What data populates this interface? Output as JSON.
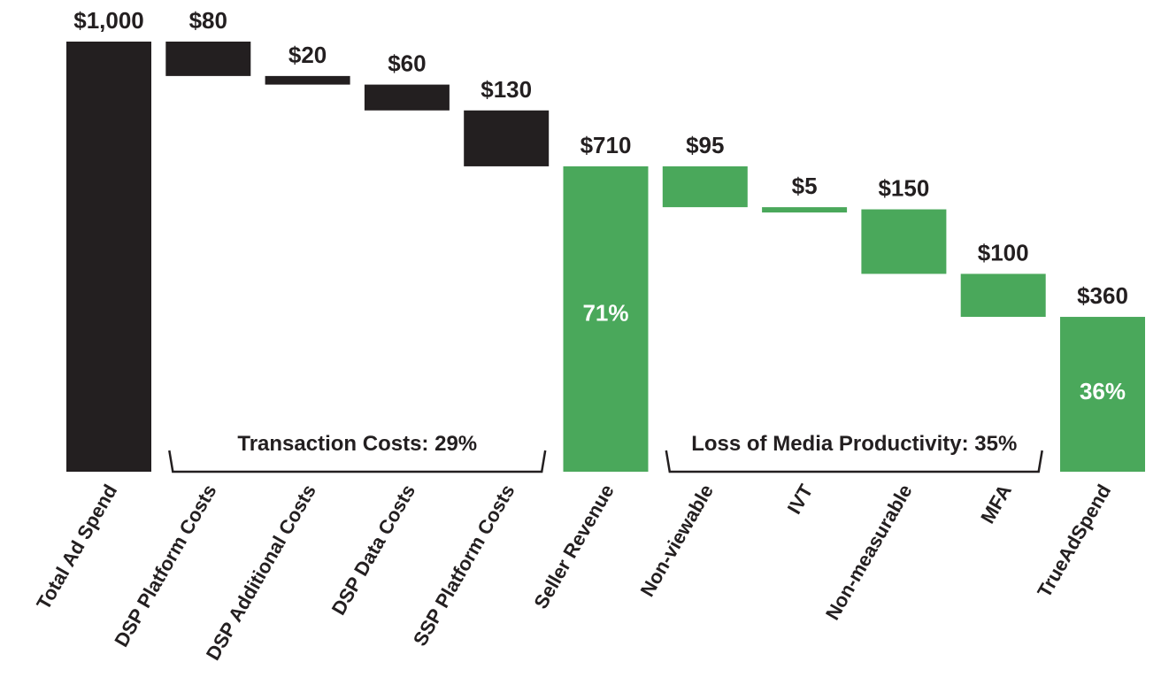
{
  "colors": {
    "dark": "#231f20",
    "green": "#4aa85b"
  },
  "chart_data": {
    "type": "waterfall",
    "title": "",
    "ylim": [
      0,
      1000
    ],
    "categories": [
      "Total Ad Spend",
      "DSP Platform Costs",
      "DSP Additional Costs",
      "DSP Data Costs",
      "SSP Platform Costs",
      "Seller Revenue",
      "Non-viewable",
      "IVT",
      "Non-measurable",
      "MFA",
      "TrueAdSpend"
    ],
    "bars": [
      {
        "category": "Total Ad Spend",
        "value": 1000,
        "label": "$1,000",
        "kind": "total",
        "color": "dark",
        "pct": ""
      },
      {
        "category": "DSP Platform Costs",
        "value": 80,
        "label": "$80",
        "kind": "decrease",
        "color": "dark",
        "pct": ""
      },
      {
        "category": "DSP Additional Costs",
        "value": 20,
        "label": "$20",
        "kind": "decrease",
        "color": "dark",
        "pct": ""
      },
      {
        "category": "DSP Data Costs",
        "value": 60,
        "label": "$60",
        "kind": "decrease",
        "color": "dark",
        "pct": ""
      },
      {
        "category": "SSP Platform Costs",
        "value": 130,
        "label": "$130",
        "kind": "decrease",
        "color": "dark",
        "pct": ""
      },
      {
        "category": "Seller Revenue",
        "value": 710,
        "label": "$710",
        "kind": "total",
        "color": "green",
        "pct": "71%"
      },
      {
        "category": "Non-viewable",
        "value": 95,
        "label": "$95",
        "kind": "decrease",
        "color": "green",
        "pct": ""
      },
      {
        "category": "IVT",
        "value": 5,
        "label": "$5",
        "kind": "decrease",
        "color": "green",
        "pct": ""
      },
      {
        "category": "Non-measurable",
        "value": 150,
        "label": "$150",
        "kind": "decrease",
        "color": "green",
        "pct": ""
      },
      {
        "category": "MFA",
        "value": 100,
        "label": "$100",
        "kind": "decrease",
        "color": "green",
        "pct": ""
      },
      {
        "category": "TrueAdSpend",
        "value": 360,
        "label": "$360",
        "kind": "total",
        "color": "green",
        "pct": "36%"
      }
    ],
    "braces": [
      {
        "label": "Transaction Costs: 29%",
        "from": 1,
        "to": 4
      },
      {
        "label": "Loss of Media Productivity: 35%",
        "from": 6,
        "to": 9
      }
    ]
  }
}
